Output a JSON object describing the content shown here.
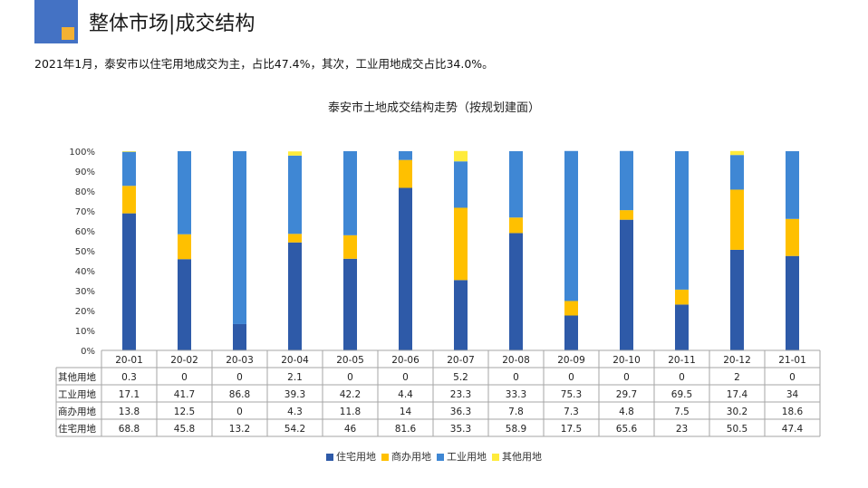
{
  "header": {
    "title": "整体市场|成交结构",
    "summary": "2021年1月，泰安市以住宅用地成交为主，占比47.4%，其次，工业用地成交占比34.0%。"
  },
  "colors": {
    "brand_blue": "#4472c4",
    "brand_orange": "#f4b133",
    "residential": "#2e5aa8",
    "commercial": "#ffc000",
    "industrial": "#3f87d4",
    "other": "#ffeb3b"
  },
  "chart_data": {
    "type": "bar",
    "stacked": "percent",
    "title": "泰安市土地成交结构走势（按规划建面）",
    "categories": [
      "20-01",
      "20-02",
      "20-03",
      "20-04",
      "20-05",
      "20-06",
      "20-07",
      "20-08",
      "20-09",
      "20-10",
      "20-11",
      "20-12",
      "21-01"
    ],
    "series": [
      {
        "name": "住宅用地",
        "values": [
          68.8,
          45.8,
          13.2,
          54.2,
          46,
          81.6,
          35.3,
          58.9,
          17.5,
          65.6,
          23,
          50.5,
          47.4
        ]
      },
      {
        "name": "商办用地",
        "values": [
          13.8,
          12.5,
          0,
          4.3,
          11.8,
          14,
          36.3,
          7.8,
          7.3,
          4.8,
          7.5,
          30.2,
          18.6
        ]
      },
      {
        "name": "工业用地",
        "values": [
          17.1,
          41.7,
          86.8,
          39.3,
          42.2,
          4.4,
          23.3,
          33.3,
          75.3,
          29.7,
          69.5,
          17.4,
          34
        ]
      },
      {
        "name": "其他用地",
        "values": [
          0.3,
          0,
          0,
          2.1,
          0,
          0,
          5.2,
          0,
          0,
          0,
          0,
          2,
          0
        ]
      }
    ],
    "table_rows": [
      {
        "name": "其他用地",
        "values": [
          "0.3",
          "0",
          "0",
          "2.1",
          "0",
          "0",
          "5.2",
          "0",
          "0",
          "0",
          "0",
          "2",
          "0"
        ]
      },
      {
        "name": "工业用地",
        "values": [
          "17.1",
          "41.7",
          "86.8",
          "39.3",
          "42.2",
          "4.4",
          "23.3",
          "33.3",
          "75.3",
          "29.7",
          "69.5",
          "17.4",
          "34"
        ]
      },
      {
        "name": "商办用地",
        "values": [
          "13.8",
          "12.5",
          "0",
          "4.3",
          "11.8",
          "14",
          "36.3",
          "7.8",
          "7.3",
          "4.8",
          "7.5",
          "30.2",
          "18.6"
        ]
      },
      {
        "name": "住宅用地",
        "values": [
          "68.8",
          "45.8",
          "13.2",
          "54.2",
          "46",
          "81.6",
          "35.3",
          "58.9",
          "17.5",
          "65.6",
          "23",
          "50.5",
          "47.4"
        ]
      }
    ],
    "y_ticks": [
      "0%",
      "10%",
      "20%",
      "30%",
      "40%",
      "50%",
      "60%",
      "70%",
      "80%",
      "90%",
      "100%"
    ],
    "ylim": [
      0,
      100
    ],
    "legend_position": "bottom"
  }
}
